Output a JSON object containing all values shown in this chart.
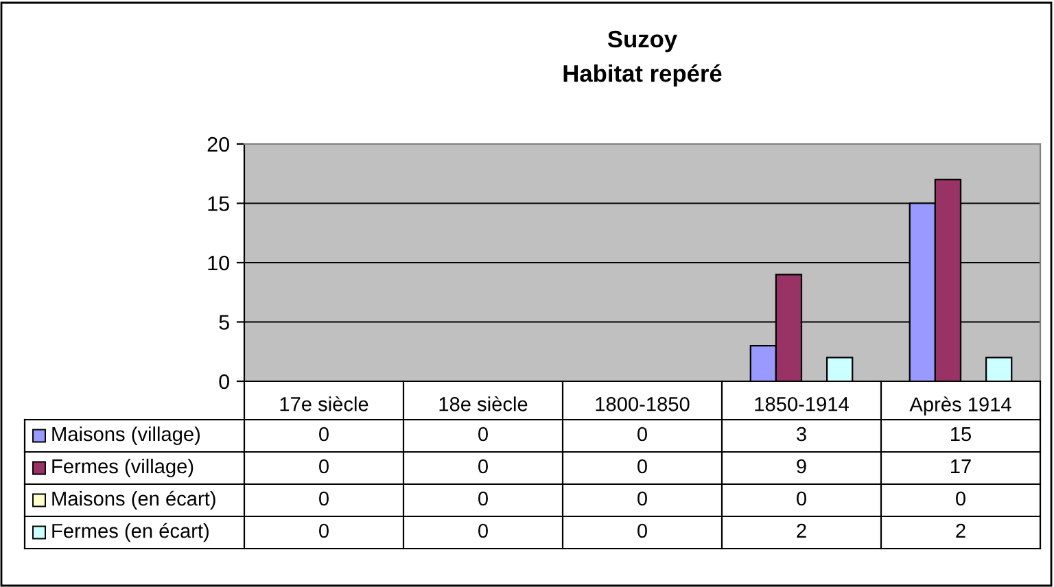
{
  "chart_data": {
    "type": "bar",
    "title": "Suzoy",
    "subtitle": "Habitat repéré",
    "categories": [
      "17e siècle",
      "18e siècle",
      "1800-1850",
      "1850-1914",
      "Après 1914"
    ],
    "series": [
      {
        "name": "Maisons (village)",
        "color": "#9999ff",
        "values": [
          0,
          0,
          0,
          3,
          15
        ]
      },
      {
        "name": "Fermes (village)",
        "color": "#993366",
        "values": [
          0,
          0,
          0,
          9,
          17
        ]
      },
      {
        "name": "Maisons (en écart)",
        "color": "#ffffcc",
        "values": [
          0,
          0,
          0,
          0,
          0
        ]
      },
      {
        "name": "Fermes (en écart)",
        "color": "#ccffff",
        "values": [
          0,
          0,
          0,
          2,
          2
        ]
      }
    ],
    "ylim": [
      0,
      20
    ],
    "yticks": [
      0,
      5,
      10,
      15,
      20
    ],
    "grid": "y",
    "legend": "bottom left",
    "data_labels": true
  }
}
